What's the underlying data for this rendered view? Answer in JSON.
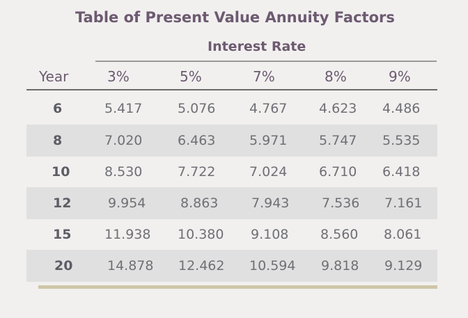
{
  "title": "Table of Present Value Annuity Factors",
  "subtitle": "Interest Rate",
  "columns": [
    "Year",
    "3%",
    "5%",
    "7%",
    "8%",
    "9%"
  ],
  "rows": [
    {
      "year": "6",
      "values": [
        "5.417",
        "5.076",
        "4.767",
        "4.623",
        "4.486"
      ]
    },
    {
      "year": "8",
      "values": [
        "7.020",
        "6.463",
        "5.971",
        "5.747",
        "5.535"
      ]
    },
    {
      "year": "10",
      "values": [
        "8.530",
        "7.722",
        "7.024",
        "6.710",
        "6.418"
      ]
    },
    {
      "year": "12",
      "values": [
        "9.954",
        "8.863",
        "7.943",
        "7.536",
        "7.161"
      ]
    },
    {
      "year": "15",
      "values": [
        "11.938",
        "10.380",
        "9.108",
        "8.560",
        "8.061"
      ]
    },
    {
      "year": "20",
      "values": [
        "14.878",
        "12.462",
        "10.594",
        "9.818",
        "9.129"
      ]
    }
  ]
}
